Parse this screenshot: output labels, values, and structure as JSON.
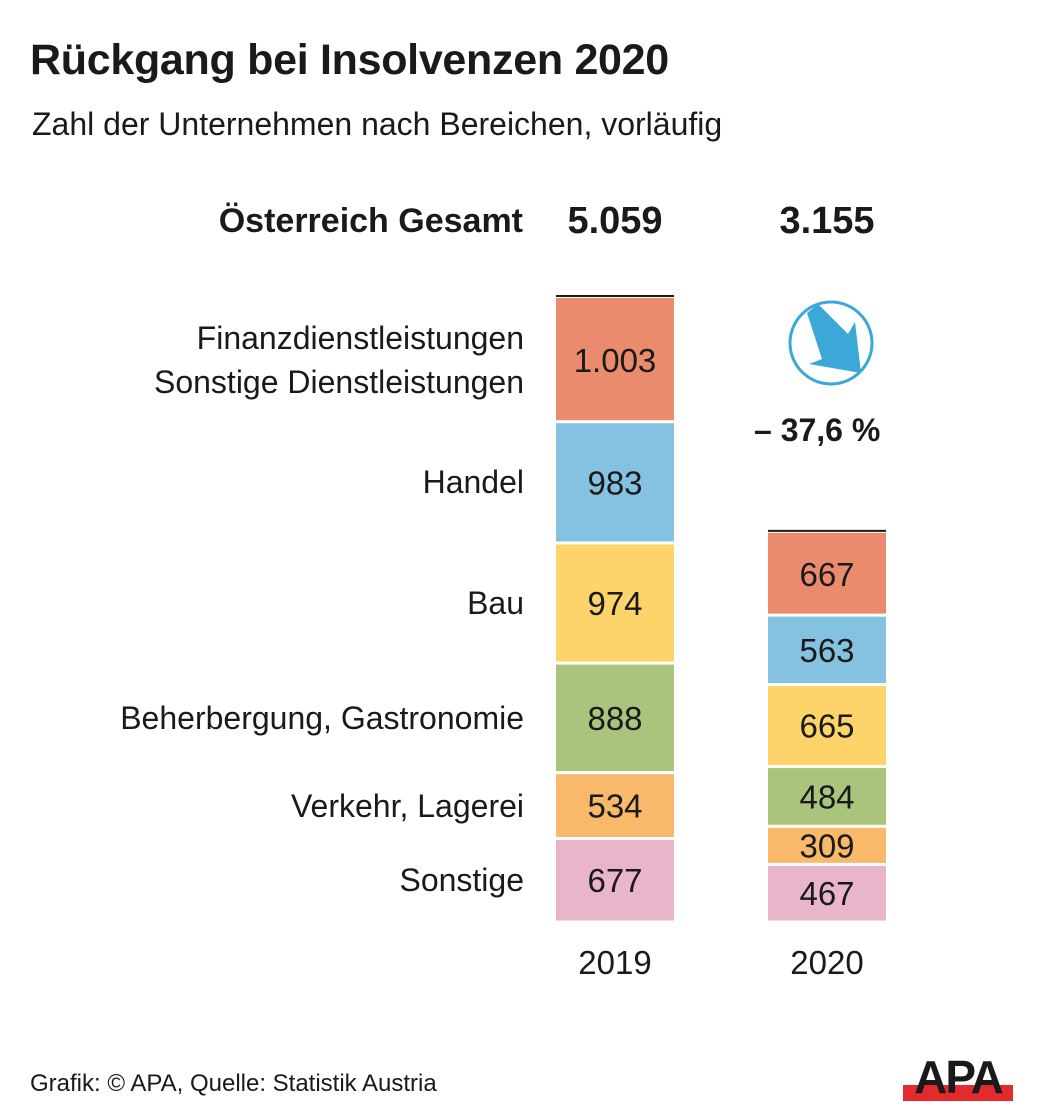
{
  "chart_data": {
    "type": "bar",
    "stacked": true,
    "title": "Rückgang bei Insolvenzen 2020",
    "subtitle": "Zahl der Unternehmen nach Bereichen, vorläufig",
    "categories": [
      "2019",
      "2020"
    ],
    "totals_label": "Österreich Gesamt",
    "totals": [
      {
        "value": 5059,
        "label": "5.059"
      },
      {
        "value": 3155,
        "label": "3.155"
      }
    ],
    "series": [
      {
        "name": "Finanzdienstleistungen\nSonstige Dienstleistungen",
        "label_lines": [
          "Finanzdienstleistungen",
          "Sonstige Dienstleistungen"
        ],
        "color": "#EA8B6E",
        "values": [
          1003,
          667
        ],
        "value_labels": [
          "1.003",
          "667"
        ]
      },
      {
        "name": "Handel",
        "label_lines": [
          "Handel"
        ],
        "color": "#85C1E0",
        "values": [
          983,
          563
        ],
        "value_labels": [
          "983",
          "563"
        ]
      },
      {
        "name": "Bau",
        "label_lines": [
          "Bau"
        ],
        "color": "#FDD469",
        "values": [
          974,
          665
        ],
        "value_labels": [
          "974",
          "665"
        ]
      },
      {
        "name": "Beherbergung, Gastronomie",
        "label_lines": [
          "Beherbergung, Gastronomie"
        ],
        "color": "#AAC47E",
        "values": [
          888,
          484
        ],
        "value_labels": [
          "888",
          "484"
        ]
      },
      {
        "name": "Verkehr, Lagerei",
        "label_lines": [
          "Verkehr, Lagerei"
        ],
        "color": "#F9B96B",
        "values": [
          534,
          309
        ],
        "value_labels": [
          "534",
          "309"
        ]
      },
      {
        "name": "Sonstige",
        "label_lines": [
          "Sonstige"
        ],
        "color": "#E9B5CB",
        "values": [
          677,
          467
        ],
        "value_labels": [
          "677",
          "467"
        ]
      }
    ],
    "change": {
      "value": -37.6,
      "label": "– 37,6 %",
      "icon": "arrow-down-right-circle-icon",
      "color": "#3BA8D8"
    },
    "legend": "left-labels",
    "grid": false
  },
  "footer": {
    "source": "Grafik: © APA, Quelle: Statistik Austria",
    "logo_text": "APA",
    "logo_color": "#E32B2B"
  }
}
